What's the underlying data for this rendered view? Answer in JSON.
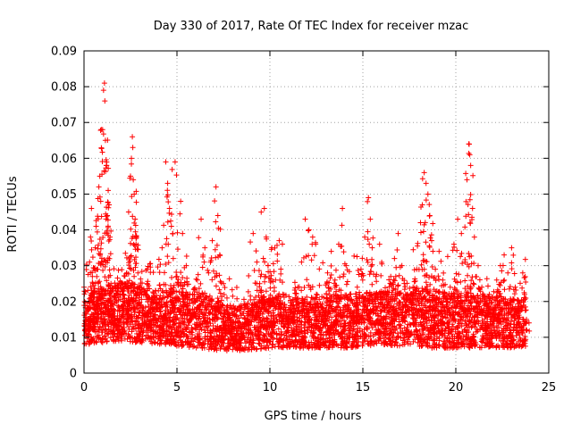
{
  "chart_data": {
    "type": "scatter",
    "title": "Day 330 of 2017, Rate Of TEC Index for receiver mzac",
    "xlabel": "GPS time / hours",
    "ylabel": "ROTI / TECUs",
    "xlim": [
      0,
      25
    ],
    "ylim": [
      0,
      0.09
    ],
    "xticks": [
      0,
      5,
      10,
      15,
      20,
      25
    ],
    "xtick_labels": [
      "0",
      "5",
      "10",
      "15",
      "20",
      "25"
    ],
    "yticks": [
      0,
      0.01,
      0.02,
      0.03,
      0.04,
      0.05,
      0.06,
      0.07,
      0.08,
      0.09
    ],
    "ytick_labels": [
      "0",
      "0.01",
      "0.02",
      "0.03",
      "0.04",
      "0.05",
      "0.06",
      "0.07",
      "0.08",
      "0.09"
    ],
    "grid": true,
    "grid_style": "dotted",
    "marker": "+",
    "marker_color": "#ff0000",
    "series": [
      {
        "points": [
          [
            0.0,
            0.024
          ],
          [
            0.1,
            0.012
          ],
          [
            0.2,
            0.018
          ],
          [
            0.3,
            0.031
          ],
          [
            0.35,
            0.038
          ],
          [
            0.4,
            0.046
          ],
          [
            0.45,
            0.027
          ],
          [
            0.5,
            0.015
          ],
          [
            0.55,
            0.022
          ],
          [
            0.6,
            0.035
          ],
          [
            0.65,
            0.041
          ],
          [
            0.7,
            0.029
          ],
          [
            0.75,
            0.019
          ],
          [
            0.8,
            0.052
          ],
          [
            0.85,
            0.055
          ],
          [
            0.9,
            0.048
          ],
          [
            0.95,
            0.031
          ],
          [
            1.0,
            0.068
          ],
          [
            1.05,
            0.079
          ],
          [
            1.1,
            0.081
          ],
          [
            1.12,
            0.076
          ],
          [
            1.15,
            0.065
          ],
          [
            1.2,
            0.058
          ],
          [
            1.25,
            0.044
          ],
          [
            1.3,
            0.051
          ],
          [
            1.35,
            0.047
          ],
          [
            1.4,
            0.038
          ],
          [
            1.45,
            0.025
          ],
          [
            1.5,
            0.018
          ],
          [
            1.6,
            0.014
          ],
          [
            1.7,
            0.021
          ],
          [
            1.8,
            0.016
          ],
          [
            1.9,
            0.012
          ],
          [
            2.0,
            0.025
          ],
          [
            2.1,
            0.019
          ],
          [
            2.2,
            0.024
          ],
          [
            2.3,
            0.028
          ],
          [
            2.4,
            0.045
          ],
          [
            2.5,
            0.055
          ],
          [
            2.55,
            0.06
          ],
          [
            2.6,
            0.066
          ],
          [
            2.65,
            0.054
          ],
          [
            2.7,
            0.05
          ],
          [
            2.75,
            0.043
          ],
          [
            2.8,
            0.036
          ],
          [
            2.9,
            0.028
          ],
          [
            3.0,
            0.022
          ],
          [
            3.2,
            0.018
          ],
          [
            3.4,
            0.025
          ],
          [
            3.6,
            0.02
          ],
          [
            3.8,
            0.016
          ],
          [
            4.0,
            0.023
          ],
          [
            4.2,
            0.035
          ],
          [
            4.4,
            0.059
          ],
          [
            4.5,
            0.053
          ],
          [
            4.6,
            0.046
          ],
          [
            4.7,
            0.041
          ],
          [
            4.8,
            0.032
          ],
          [
            4.9,
            0.059
          ],
          [
            5.0,
            0.027
          ],
          [
            5.2,
            0.048
          ],
          [
            5.3,
            0.039
          ],
          [
            5.5,
            0.03
          ],
          [
            5.7,
            0.022
          ],
          [
            5.9,
            0.017
          ],
          [
            6.1,
            0.026
          ],
          [
            6.3,
            0.043
          ],
          [
            6.5,
            0.035
          ],
          [
            6.7,
            0.028
          ],
          [
            6.9,
            0.037
          ],
          [
            7.1,
            0.052
          ],
          [
            7.2,
            0.044
          ],
          [
            7.3,
            0.033
          ],
          [
            7.5,
            0.025
          ],
          [
            7.7,
            0.017
          ],
          [
            7.9,
            0.012
          ],
          [
            8.1,
            0.009
          ],
          [
            8.3,
            0.013
          ],
          [
            8.5,
            0.01
          ],
          [
            8.7,
            0.014
          ],
          [
            8.9,
            0.018
          ],
          [
            9.1,
            0.039
          ],
          [
            9.3,
            0.031
          ],
          [
            9.5,
            0.027
          ],
          [
            9.7,
            0.046
          ],
          [
            9.8,
            0.038
          ],
          [
            9.9,
            0.03
          ],
          [
            10.1,
            0.035
          ],
          [
            10.3,
            0.026
          ],
          [
            10.5,
            0.037
          ],
          [
            10.7,
            0.022
          ],
          [
            10.9,
            0.015
          ],
          [
            11.1,
            0.018
          ],
          [
            11.3,
            0.011
          ],
          [
            11.5,
            0.024
          ],
          [
            11.7,
            0.031
          ],
          [
            11.9,
            0.043
          ],
          [
            12.1,
            0.04
          ],
          [
            12.3,
            0.038
          ],
          [
            12.5,
            0.022
          ],
          [
            12.7,
            0.017
          ],
          [
            12.9,
            0.021
          ],
          [
            13.1,
            0.028
          ],
          [
            13.3,
            0.034
          ],
          [
            13.5,
            0.026
          ],
          [
            13.7,
            0.036
          ],
          [
            13.9,
            0.046
          ],
          [
            14.1,
            0.03
          ],
          [
            14.3,
            0.022
          ],
          [
            14.5,
            0.016
          ],
          [
            14.7,
            0.024
          ],
          [
            14.9,
            0.029
          ],
          [
            15.1,
            0.038
          ],
          [
            15.3,
            0.049
          ],
          [
            15.4,
            0.043
          ],
          [
            15.5,
            0.035
          ],
          [
            15.7,
            0.027
          ],
          [
            15.9,
            0.036
          ],
          [
            16.1,
            0.022
          ],
          [
            16.3,
            0.019
          ],
          [
            16.5,
            0.027
          ],
          [
            16.7,
            0.032
          ],
          [
            16.9,
            0.039
          ],
          [
            17.1,
            0.03
          ],
          [
            17.3,
            0.022
          ],
          [
            17.5,
            0.018
          ],
          [
            17.7,
            0.024
          ],
          [
            17.9,
            0.029
          ],
          [
            18.1,
            0.042
          ],
          [
            18.2,
            0.047
          ],
          [
            18.3,
            0.056
          ],
          [
            18.4,
            0.053
          ],
          [
            18.5,
            0.05
          ],
          [
            18.6,
            0.044
          ],
          [
            18.7,
            0.037
          ],
          [
            18.9,
            0.029
          ],
          [
            19.1,
            0.034
          ],
          [
            19.3,
            0.026
          ],
          [
            19.5,
            0.02
          ],
          [
            19.7,
            0.024
          ],
          [
            19.9,
            0.036
          ],
          [
            20.1,
            0.043
          ],
          [
            20.3,
            0.039
          ],
          [
            20.5,
            0.031
          ],
          [
            20.6,
            0.054
          ],
          [
            20.7,
            0.064
          ],
          [
            20.75,
            0.061
          ],
          [
            20.8,
            0.058
          ],
          [
            20.9,
            0.046
          ],
          [
            21.0,
            0.038
          ],
          [
            21.2,
            0.03
          ],
          [
            21.4,
            0.024
          ],
          [
            21.6,
            0.019
          ],
          [
            21.8,
            0.022
          ],
          [
            22.0,
            0.017
          ],
          [
            22.2,
            0.026
          ],
          [
            22.4,
            0.03
          ],
          [
            22.6,
            0.033
          ],
          [
            22.8,
            0.028
          ],
          [
            23.0,
            0.035
          ],
          [
            23.2,
            0.024
          ],
          [
            23.4,
            0.018
          ],
          [
            23.6,
            0.028
          ],
          [
            23.7,
            0.022
          ],
          [
            23.8,
            0.015
          ]
        ],
        "baseline": {
          "note_units": "ROTI background band",
          "hours": [
            0,
            2,
            4,
            6,
            8,
            10,
            12,
            14,
            16,
            18,
            20,
            22,
            23.8
          ],
          "low": [
            0.008,
            0.009,
            0.008,
            0.007,
            0.006,
            0.007,
            0.007,
            0.007,
            0.008,
            0.007,
            0.007,
            0.007,
            0.007
          ],
          "high": [
            0.022,
            0.026,
            0.023,
            0.024,
            0.018,
            0.022,
            0.021,
            0.022,
            0.023,
            0.024,
            0.022,
            0.022,
            0.02
          ]
        }
      }
    ]
  }
}
